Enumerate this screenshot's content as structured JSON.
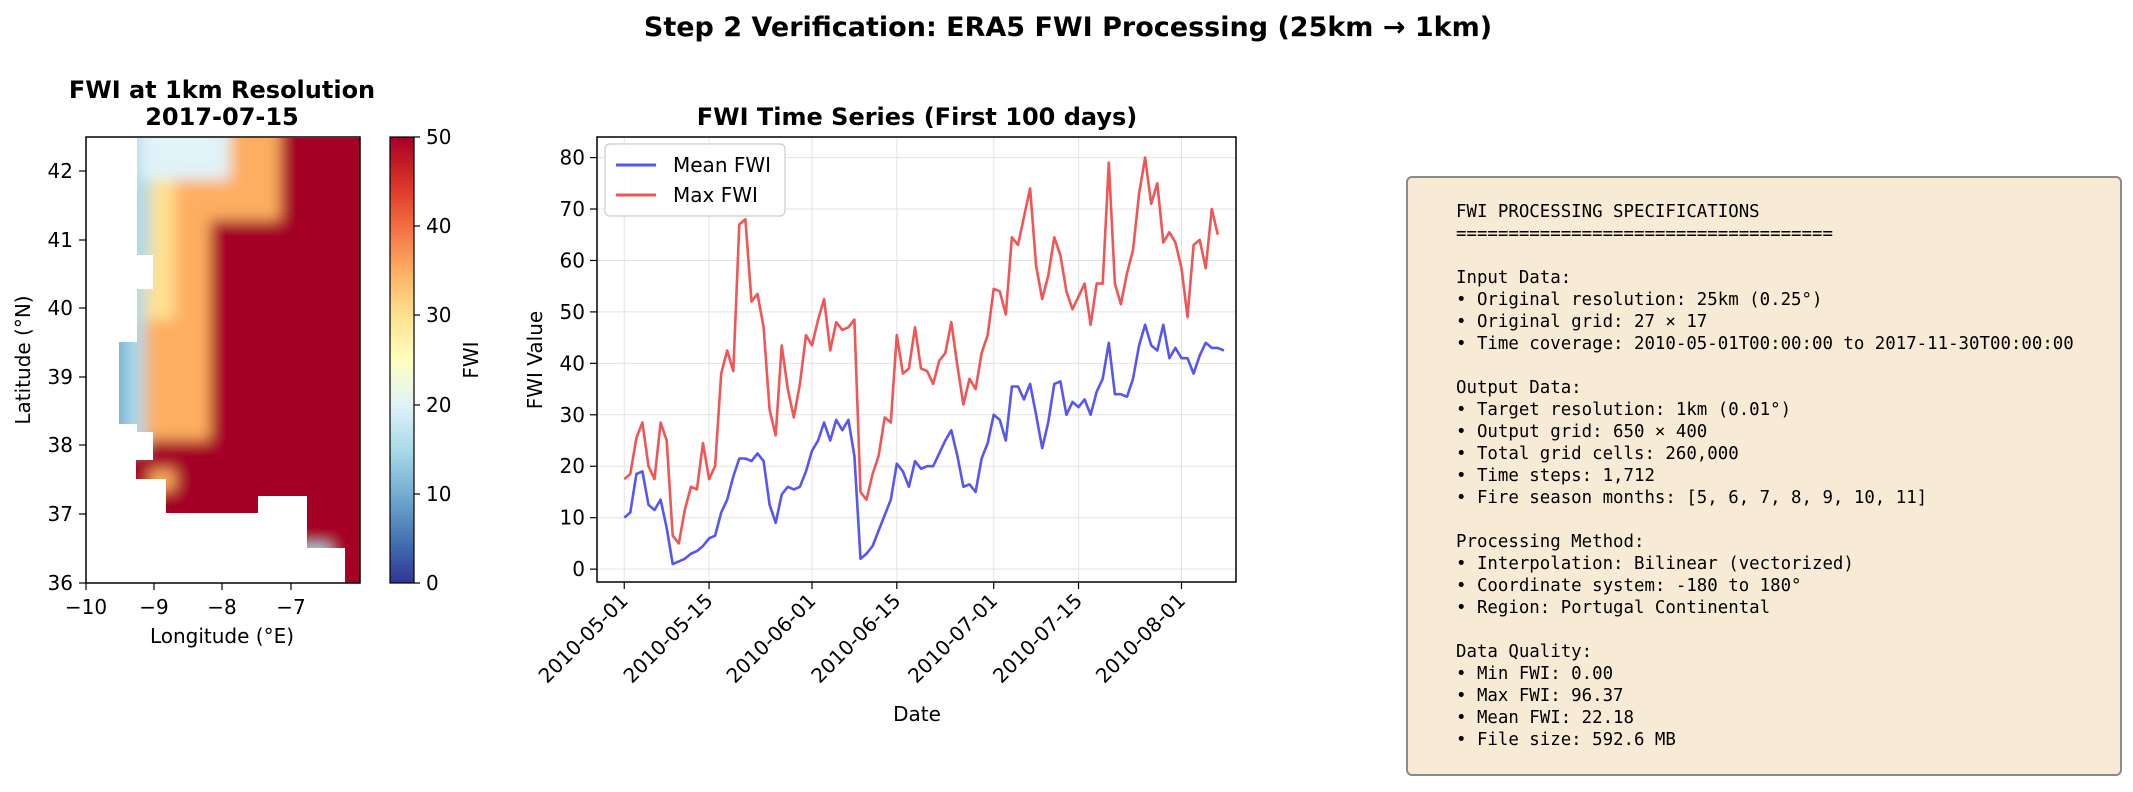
{
  "suptitle": "Step 2 Verification: ERA5 FWI Processing (25km → 1km)",
  "map": {
    "title_line1": "FWI at 1km Resolution",
    "title_line2": "2017-07-15",
    "xlabel": "Longitude (°E)",
    "ylabel": "Latitude (°N)",
    "xticks": [
      "−10",
      "−9",
      "−8",
      "−7"
    ],
    "yticks": [
      "36",
      "37",
      "38",
      "39",
      "40",
      "41",
      "42"
    ],
    "xlim": [
      -10,
      -6
    ],
    "ylim": [
      36,
      42.5
    ],
    "colorbar": {
      "label": "FWI",
      "ticks": [
        "0",
        "10",
        "20",
        "30",
        "40",
        "50"
      ],
      "vmin": 0,
      "vmax": 50,
      "cmap": "RdYlBu_r"
    }
  },
  "chart_data": {
    "type": "line",
    "title": "FWI Time Series (First 100 days)",
    "xlabel": "Date",
    "ylabel": "FWI Value",
    "x_start": "2010-05-01",
    "x_end": "2010-08-06",
    "xticks": [
      "2010-05-01",
      "2010-05-15",
      "2010-06-01",
      "2010-06-15",
      "2010-07-01",
      "2010-07-15",
      "2010-08-01"
    ],
    "yticks": [
      "0",
      "10",
      "20",
      "30",
      "40",
      "50",
      "60",
      "70",
      "80"
    ],
    "ylim": [
      -2.5,
      84
    ],
    "grid": true,
    "legend_position": "upper-left",
    "series": [
      {
        "name": "Mean FWI",
        "color": "#4444ee",
        "values": [
          10,
          11,
          18.5,
          19,
          12.5,
          11.5,
          13.5,
          8,
          1,
          1.5,
          2,
          3,
          3.5,
          4.5,
          6,
          6.5,
          11,
          13.5,
          18,
          21.5,
          21.5,
          21,
          22.5,
          21,
          12.5,
          9,
          14.5,
          16,
          15.5,
          16,
          19,
          23,
          25,
          28.5,
          25,
          29,
          27,
          29,
          22,
          2,
          3,
          4.5,
          7.5,
          10.5,
          13.5,
          20.5,
          19,
          16,
          21,
          19.5,
          20,
          20,
          22.5,
          25,
          27,
          22,
          16,
          16.5,
          15,
          21.5,
          24.5,
          30,
          29,
          25,
          35.5,
          35.5,
          33,
          36,
          30,
          23.5,
          28.5,
          36,
          36.5,
          30,
          32.5,
          31.5,
          33,
          30,
          34.5,
          37,
          44,
          34,
          34,
          33.5,
          37,
          43.5,
          47.5,
          43.5,
          42.5,
          47.5,
          41,
          43,
          41,
          41,
          38,
          41.5,
          44,
          43,
          43,
          42.5
        ]
      },
      {
        "name": "Max FWI",
        "color": "#ee4444",
        "values": [
          17.5,
          18.5,
          25.5,
          28.5,
          20,
          17.5,
          28.5,
          25,
          6.5,
          5,
          11.5,
          16,
          15.5,
          24.5,
          17.5,
          20,
          38,
          42.5,
          38.5,
          67,
          68,
          52,
          53.5,
          47,
          31,
          26,
          43.5,
          35,
          29.5,
          36,
          45.5,
          43.5,
          48.5,
          52.5,
          42.5,
          48,
          46.5,
          47,
          48.5,
          15,
          13.5,
          18.5,
          22,
          29.5,
          28.5,
          45.5,
          38,
          39,
          47,
          39,
          38.5,
          36,
          40.5,
          42,
          48,
          39.5,
          32,
          37,
          35,
          42,
          45.5,
          54.5,
          54,
          49.5,
          64.5,
          63,
          68.5,
          74,
          59,
          52.5,
          57,
          64.5,
          61,
          54,
          50.5,
          53,
          55.5,
          47.5,
          55.5,
          55.5,
          79,
          55.5,
          51.5,
          57.5,
          62,
          73,
          80,
          71,
          75,
          63.5,
          65.5,
          63.5,
          58.5,
          49,
          63,
          64,
          58.5,
          70,
          65
        ]
      }
    ]
  },
  "specs": {
    "lines": [
      "FWI PROCESSING SPECIFICATIONS",
      "====================================",
      "",
      "Input Data:",
      "• Original resolution: 25km (0.25°)",
      "• Original grid: 27 × 17",
      "• Time coverage: 2010-05-01T00:00:00 to 2017-11-30T00:00:00",
      "",
      "Output Data:",
      "• Target resolution: 1km (0.01°)",
      "• Output grid: 650 × 400",
      "• Total grid cells: 260,000",
      "• Time steps: 1,712",
      "• Fire season months: [5, 6, 7, 8, 9, 10, 11]",
      "",
      "Processing Method:",
      "• Interpolation: Bilinear (vectorized)",
      "• Coordinate system: -180 to 180°",
      "• Region: Portugal Continental",
      "",
      "Data Quality:",
      "• Min FWI: 0.00",
      "• Max FWI: 96.37",
      "• Mean FWI: 22.18",
      "• File size: 592.6 MB"
    ]
  }
}
